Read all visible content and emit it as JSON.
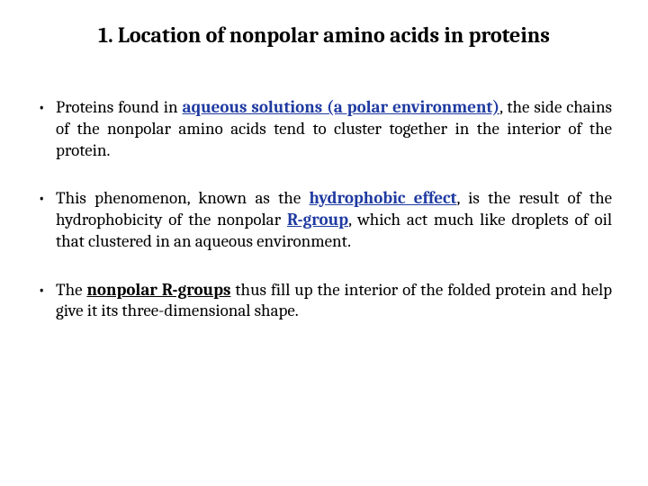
{
  "title": "1. Location of nonpolar amino acids in proteins",
  "bullets": [
    {
      "pre": "Proteins found in ",
      "hl": "aqueous solutions (a polar environment)",
      "post": ", the side chains of the nonpolar amino acids tend to cluster together in the interior of the protein."
    },
    {
      "pre": "This phenomenon, known as the ",
      "hl": "hydrophobic effect",
      "mid": ", is the result of the hydrophobicity of the nonpolar ",
      "hl2": "R-group",
      "post": ", which act much like droplets of oil that clustered in an aqueous environment."
    },
    {
      "pre": "The ",
      "ulk": "nonpolar R-groups",
      "post": " thus fill up the interior of the folded protein and help give it its three-dimensional shape."
    }
  ],
  "colors": {
    "highlight": "#1f3aa1",
    "text": "#000000",
    "background": "#ffffff"
  }
}
